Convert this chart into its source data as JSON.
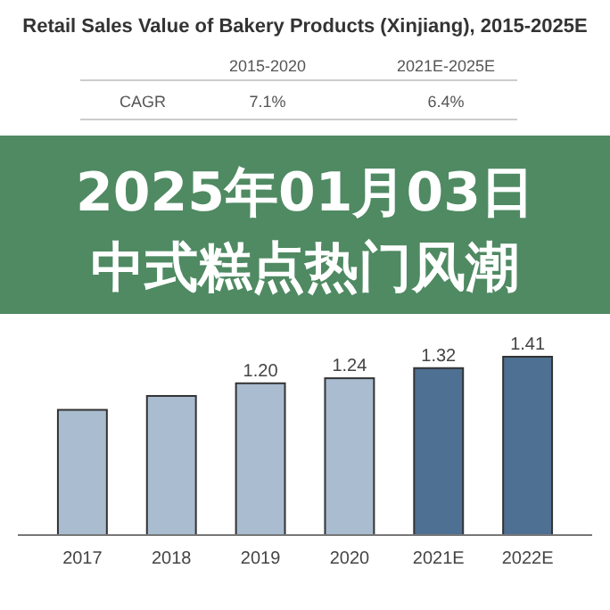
{
  "chart_data": {
    "type": "bar",
    "title": "Retail Sales Value of Bakery Products (Xinjiang), 2015-2025E",
    "categories": [
      "2017",
      "2018",
      "2019",
      "2020",
      "2021E",
      "2022E"
    ],
    "values": [
      0.99,
      1.1,
      1.2,
      1.24,
      1.32,
      1.41
    ],
    "value_labels": [
      null,
      null,
      "1.20",
      "1.24",
      "1.32",
      "1.41"
    ],
    "colors": [
      "#a9bcd0",
      "#a9bcd0",
      "#a9bcd0",
      "#a9bcd0",
      "#4e7092",
      "#4e7092"
    ],
    "ylim": [
      0,
      1.41
    ],
    "tick_labels": "x",
    "annotations": [
      "2015-2020",
      "2021E-2025E",
      "CAGR",
      "7.1%",
      "6.4%",
      "2025年01月03日",
      "中式糕点热门风潮"
    ]
  }
}
